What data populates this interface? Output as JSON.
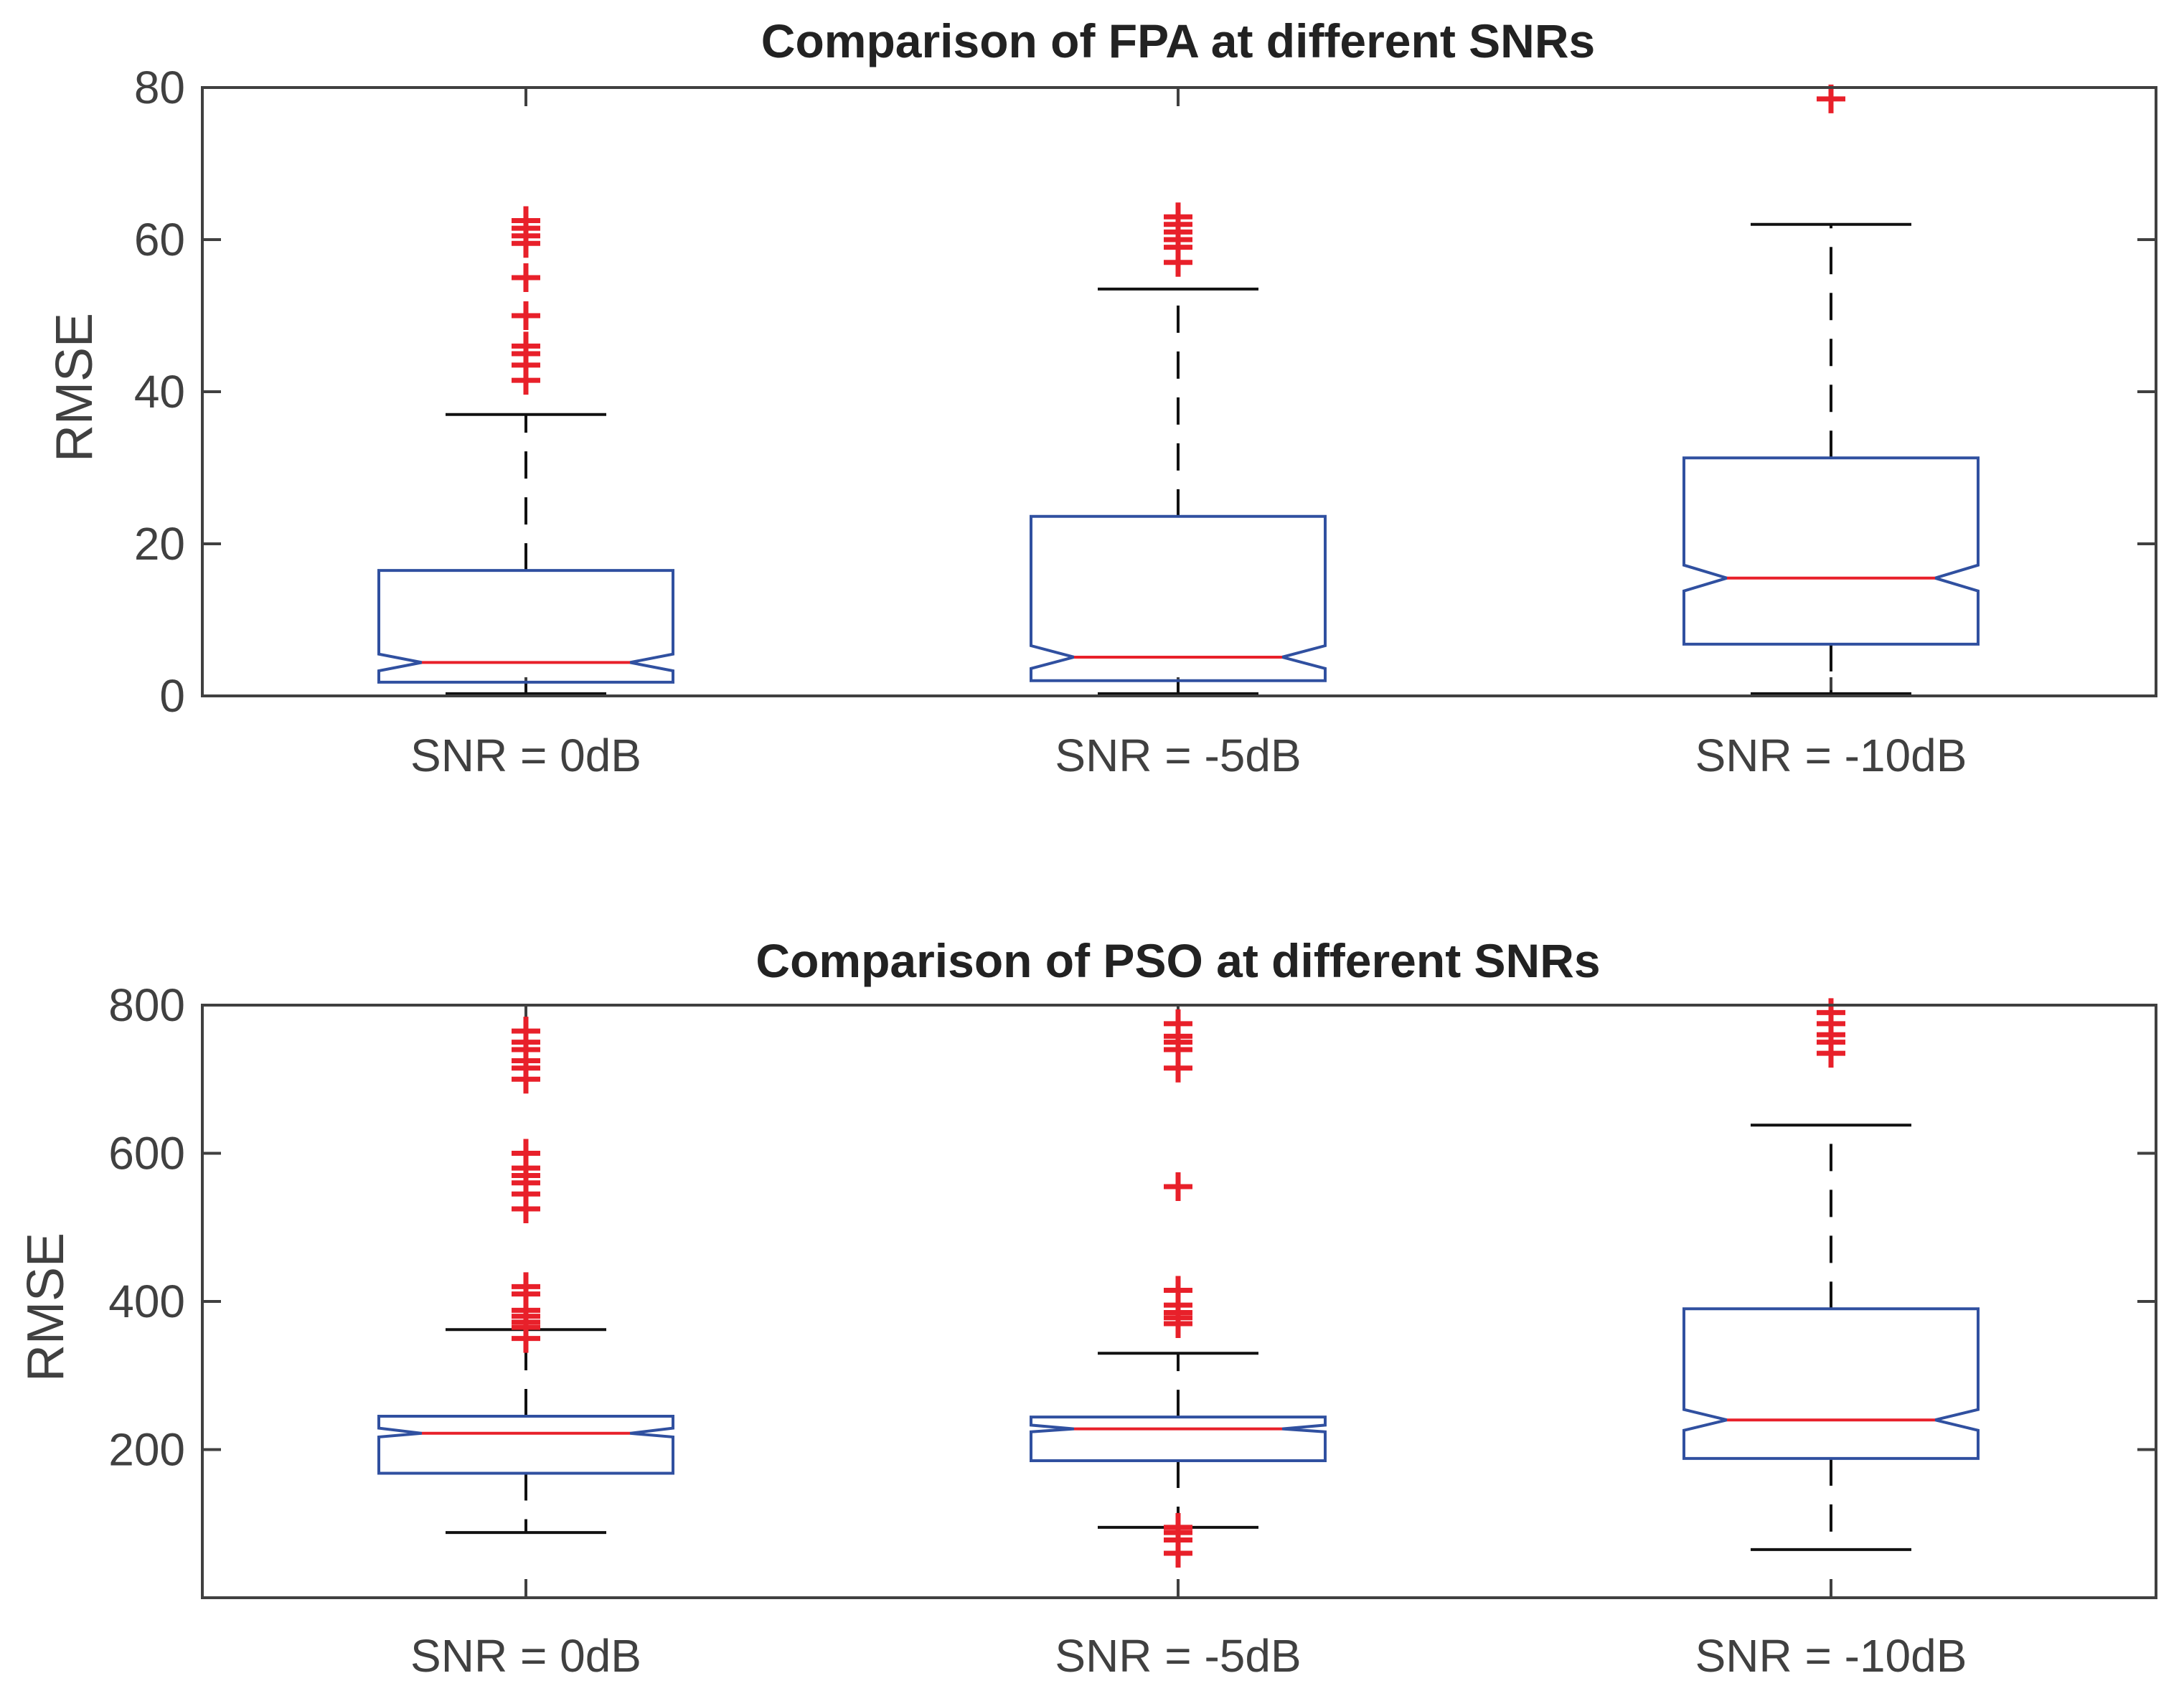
{
  "colors": {
    "box": "#3050a0",
    "median": "#e8202a",
    "whisker": "#111111",
    "outlier": "#e8202a",
    "axis": "#404040"
  },
  "chart_data": [
    {
      "type": "box",
      "title": "Comparison of FPA at different SNRs",
      "xlabel": "",
      "ylabel": "RMSE",
      "ylim": [
        0,
        80
      ],
      "yticks": [
        0,
        20,
        40,
        60,
        80
      ],
      "notched": true,
      "grid": false,
      "categories": [
        "SNR = 0dB",
        "SNR = -5dB",
        "SNR = -10dB"
      ],
      "boxes": [
        {
          "category": "SNR = 0dB",
          "whisker_low": 0.3,
          "q1": 1.8,
          "median": 4.4,
          "q3": 16.5,
          "notch_low": 3.3,
          "notch_high": 5.5,
          "whisker_high": 37,
          "outliers": [
            41.5,
            43.5,
            45,
            46,
            50,
            55,
            59.5,
            60.5,
            61.5,
            62.5
          ]
        },
        {
          "category": "SNR = -5dB",
          "whisker_low": 0.3,
          "q1": 2.0,
          "median": 5.1,
          "q3": 23.6,
          "notch_low": 3.6,
          "notch_high": 6.6,
          "whisker_high": 53.5,
          "outliers": [
            57,
            59,
            60,
            61,
            62,
            63
          ]
        },
        {
          "category": "SNR = -10dB",
          "whisker_low": 0.3,
          "q1": 6.8,
          "median": 15.5,
          "q3": 31.3,
          "notch_low": 13.8,
          "notch_high": 17.2,
          "whisker_high": 62,
          "outliers": [
            78.5
          ]
        }
      ]
    },
    {
      "type": "box",
      "title": "Comparison of PSO at different SNRs",
      "xlabel": "",
      "ylabel": "RMSE",
      "ylim": [
        0,
        800
      ],
      "yticks": [
        200,
        400,
        600,
        800
      ],
      "notched": true,
      "grid": false,
      "categories": [
        "SNR = 0dB",
        "SNR = -5dB",
        "SNR = -10dB"
      ],
      "boxes": [
        {
          "category": "SNR = 0dB",
          "whisker_low": 88,
          "q1": 168,
          "median": 222,
          "q3": 245,
          "notch_low": 217,
          "notch_high": 229,
          "whisker_high": 362,
          "outliers": [
            350,
            365,
            372,
            380,
            388,
            410,
            420,
            525,
            545,
            560,
            570,
            580,
            600,
            700,
            715,
            725,
            740,
            750,
            765
          ]
        },
        {
          "category": "SNR = -5dB",
          "whisker_low": 95,
          "q1": 185,
          "median": 228,
          "q3": 244,
          "notch_low": 224,
          "notch_high": 233,
          "whisker_high": 330,
          "outliers": [
            60,
            78,
            88,
            95,
            370,
            378,
            385,
            395,
            415,
            555,
            715,
            740,
            750,
            758,
            775
          ]
        },
        {
          "category": "SNR = -10dB",
          "whisker_low": 65,
          "q1": 188,
          "median": 240,
          "q3": 390,
          "notch_low": 226,
          "notch_high": 254,
          "whisker_high": 638,
          "outliers": [
            735,
            750,
            760,
            775,
            790
          ]
        }
      ]
    }
  ]
}
